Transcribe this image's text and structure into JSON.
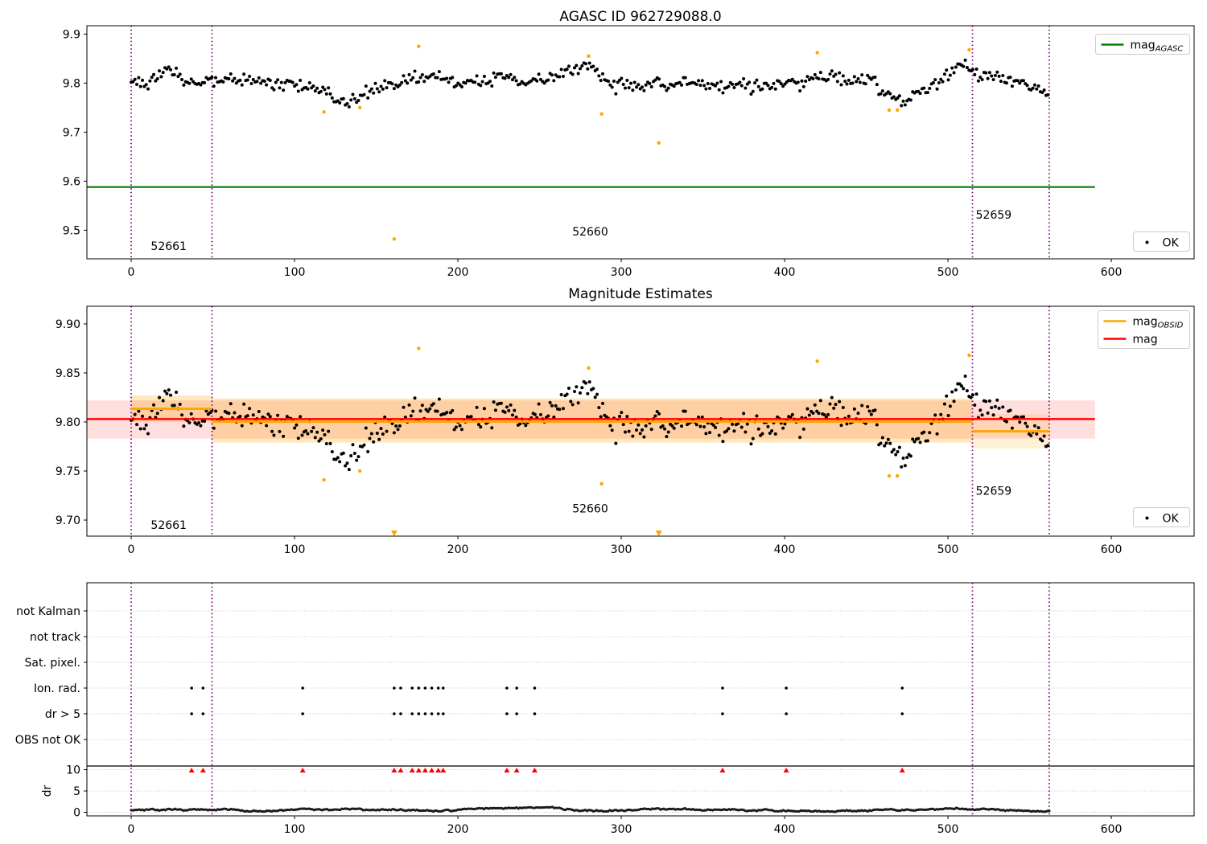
{
  "titles": {
    "top": "AGASC ID 962729088.0",
    "middle": "Magnitude Estimates"
  },
  "colors": {
    "green": "#008000",
    "red": "#ff0000",
    "orange": "#ffa500",
    "purple": "#800080",
    "black": "#000000",
    "grid": "#bbbbbb",
    "spine": "#000000",
    "pink_band": "rgba(255,0,0,0.13)",
    "orange_band": "rgba(255,165,0,0.26)",
    "orange_band_light": "rgba(255,165,0,0.16)",
    "legend_border": "#cccccc",
    "legend_bg": "rgba(255,255,255,0.9)"
  },
  "chart_data": [
    {
      "type": "scatter",
      "panel": "top",
      "title": "AGASC ID 962729088.0",
      "xlim": [
        -27.1,
        650.7
      ],
      "ylim": [
        9.4416,
        9.917
      ],
      "xticks": [
        0,
        100,
        200,
        300,
        400,
        500,
        600
      ],
      "yticks": [
        {
          "v": 9.5,
          "label": "9.5"
        },
        {
          "v": 9.6,
          "label": "9.6"
        },
        {
          "v": 9.7,
          "label": "9.7"
        },
        {
          "v": 9.8,
          "label": "9.8"
        },
        {
          "v": 9.9,
          "label": "9.9"
        }
      ],
      "legend": [
        {
          "color": "#008000",
          "label": "mag",
          "sub": "AGASC"
        }
      ],
      "legend_ok": {
        "label": "OK"
      },
      "hline": {
        "name": "mag_AGASC",
        "y": 9.588,
        "x0": -27.1,
        "x1": 590,
        "color": "#008000"
      },
      "vlines": [
        0,
        49.5,
        515,
        562
      ],
      "obsid_labels": [
        {
          "id": "52661",
          "x": 23,
          "y": 9.468
        },
        {
          "id": "52660",
          "x": 281,
          "y": 9.497
        },
        {
          "id": "52659",
          "x": 528,
          "y": 9.532
        }
      ],
      "outliers_not_ok": [
        [
          118,
          9.741
        ],
        [
          140,
          9.75
        ],
        [
          161,
          9.482
        ],
        [
          176,
          9.875
        ],
        [
          280,
          9.855
        ],
        [
          288,
          9.737
        ],
        [
          323,
          9.678
        ],
        [
          420,
          9.862
        ],
        [
          464,
          9.745
        ],
        [
          469,
          9.745
        ],
        [
          513,
          9.868
        ]
      ],
      "scatter_trend_anchors": [
        [
          0,
          9.806
        ],
        [
          8,
          9.8
        ],
        [
          15,
          9.818
        ],
        [
          22,
          9.827
        ],
        [
          28,
          9.82
        ],
        [
          35,
          9.8
        ],
        [
          42,
          9.804
        ],
        [
          50,
          9.806
        ],
        [
          58,
          9.81
        ],
        [
          66,
          9.801
        ],
        [
          74,
          9.81
        ],
        [
          82,
          9.803
        ],
        [
          90,
          9.798
        ],
        [
          98,
          9.803
        ],
        [
          106,
          9.793
        ],
        [
          114,
          9.788
        ],
        [
          122,
          9.775
        ],
        [
          130,
          9.762
        ],
        [
          138,
          9.77
        ],
        [
          146,
          9.783
        ],
        [
          154,
          9.793
        ],
        [
          162,
          9.8
        ],
        [
          170,
          9.807
        ],
        [
          178,
          9.812
        ],
        [
          186,
          9.808
        ],
        [
          194,
          9.806
        ],
        [
          202,
          9.799
        ],
        [
          210,
          9.795
        ],
        [
          218,
          9.804
        ],
        [
          226,
          9.817
        ],
        [
          234,
          9.805
        ],
        [
          242,
          9.798
        ],
        [
          250,
          9.803
        ],
        [
          258,
          9.812
        ],
        [
          266,
          9.822
        ],
        [
          272,
          9.834
        ],
        [
          278,
          9.842
        ],
        [
          284,
          9.83
        ],
        [
          290,
          9.806
        ],
        [
          296,
          9.794
        ],
        [
          302,
          9.799
        ],
        [
          308,
          9.792
        ],
        [
          314,
          9.799
        ],
        [
          320,
          9.799
        ],
        [
          326,
          9.793
        ],
        [
          332,
          9.797
        ],
        [
          338,
          9.8
        ],
        [
          344,
          9.799
        ],
        [
          350,
          9.794
        ],
        [
          356,
          9.8
        ],
        [
          362,
          9.799
        ],
        [
          368,
          9.794
        ],
        [
          374,
          9.799
        ],
        [
          380,
          9.792
        ],
        [
          386,
          9.799
        ],
        [
          392,
          9.8
        ],
        [
          398,
          9.802
        ],
        [
          404,
          9.809
        ],
        [
          410,
          9.804
        ],
        [
          416,
          9.811
        ],
        [
          422,
          9.816
        ],
        [
          428,
          9.819
        ],
        [
          434,
          9.81
        ],
        [
          440,
          9.802
        ],
        [
          446,
          9.809
        ],
        [
          452,
          9.813
        ],
        [
          458,
          9.79
        ],
        [
          464,
          9.774
        ],
        [
          470,
          9.764
        ],
        [
          476,
          9.769
        ],
        [
          482,
          9.777
        ],
        [
          488,
          9.79
        ],
        [
          494,
          9.803
        ],
        [
          500,
          9.821
        ],
        [
          506,
          9.837
        ],
        [
          511,
          9.845
        ],
        [
          515,
          9.824
        ],
        [
          520,
          9.812
        ],
        [
          526,
          9.816
        ],
        [
          532,
          9.817
        ],
        [
          538,
          9.808
        ],
        [
          544,
          9.802
        ],
        [
          550,
          9.796
        ],
        [
          556,
          9.788
        ],
        [
          562,
          9.784
        ]
      ],
      "scatter_gen": {
        "x0": 0,
        "x1": 562,
        "step": 1.15,
        "seed": 1337,
        "jitter": 0.0135
      }
    },
    {
      "type": "scatter",
      "panel": "middle",
      "title": "Magnitude Estimates",
      "xlim": [
        -27.1,
        650.7
      ],
      "ylim": [
        9.6836,
        9.918
      ],
      "xticks": [
        0,
        100,
        200,
        300,
        400,
        500,
        600
      ],
      "yticks": [
        {
          "v": 9.7,
          "label": "9.70"
        },
        {
          "v": 9.75,
          "label": "9.75"
        },
        {
          "v": 9.8,
          "label": "9.80"
        },
        {
          "v": 9.85,
          "label": "9.85"
        },
        {
          "v": 9.9,
          "label": "9.90"
        }
      ],
      "legend": [
        {
          "color": "#ffa500",
          "label": "mag",
          "sub": "OBSID"
        },
        {
          "color": "#ff0000",
          "label": "mag",
          "sub": ""
        }
      ],
      "legend_ok": {
        "label": "OK"
      },
      "mag_line": {
        "name": "mag",
        "y": 9.803,
        "x0": -27.1,
        "x1": 590,
        "color": "#ff0000"
      },
      "mag_band": {
        "y0": 9.783,
        "y1": 9.822,
        "x0": -27.1,
        "x1": 590
      },
      "obsid_segments": [
        {
          "id": "52661",
          "x0": 0,
          "x1": 49.5,
          "mag": 9.8135,
          "band": [
            9.8,
            9.827
          ],
          "light": false,
          "label_x": 23,
          "label_y": 9.695
        },
        {
          "id": "52660",
          "x0": 49.5,
          "x1": 515,
          "mag": 9.8005,
          "band": [
            9.779,
            9.824
          ],
          "light": false,
          "label_x": 281,
          "label_y": 9.712
        },
        {
          "id": "52659",
          "x0": 515,
          "x1": 562,
          "mag": 9.7905,
          "band": [
            9.773,
            9.808
          ],
          "light": true,
          "label_x": 528,
          "label_y": 9.73
        }
      ],
      "clipped_low_x": [
        161,
        323
      ],
      "vlines": [
        0,
        49.5,
        515,
        562
      ]
    },
    {
      "type": "flags",
      "panel": "bottom",
      "categories": [
        "not Kalman",
        "not track",
        "Sat. pixel.",
        "Ion. rad.",
        "dr > 5",
        "OBS not OK"
      ],
      "flag_rows": [
        "Ion. rad.",
        "dr > 5"
      ],
      "flag_x": [
        37,
        44,
        105,
        161,
        165,
        172,
        176,
        180,
        184,
        188,
        191,
        230,
        236,
        247,
        362,
        401,
        472
      ],
      "dr_axis": {
        "label": "dr",
        "ticks": [
          0,
          5,
          10
        ]
      },
      "dr_clipped_x": [
        37,
        44,
        105,
        161,
        165,
        172,
        176,
        180,
        184,
        188,
        191,
        230,
        236,
        247,
        362,
        401,
        472
      ],
      "xticks": [
        0,
        100,
        200,
        300,
        400,
        500,
        600
      ],
      "vlines": [
        0,
        49.5,
        515,
        562
      ],
      "dr_series_gen": {
        "x0": 0,
        "x1": 562,
        "step": 1.0,
        "seed": 777,
        "base": 0.55
      }
    }
  ]
}
